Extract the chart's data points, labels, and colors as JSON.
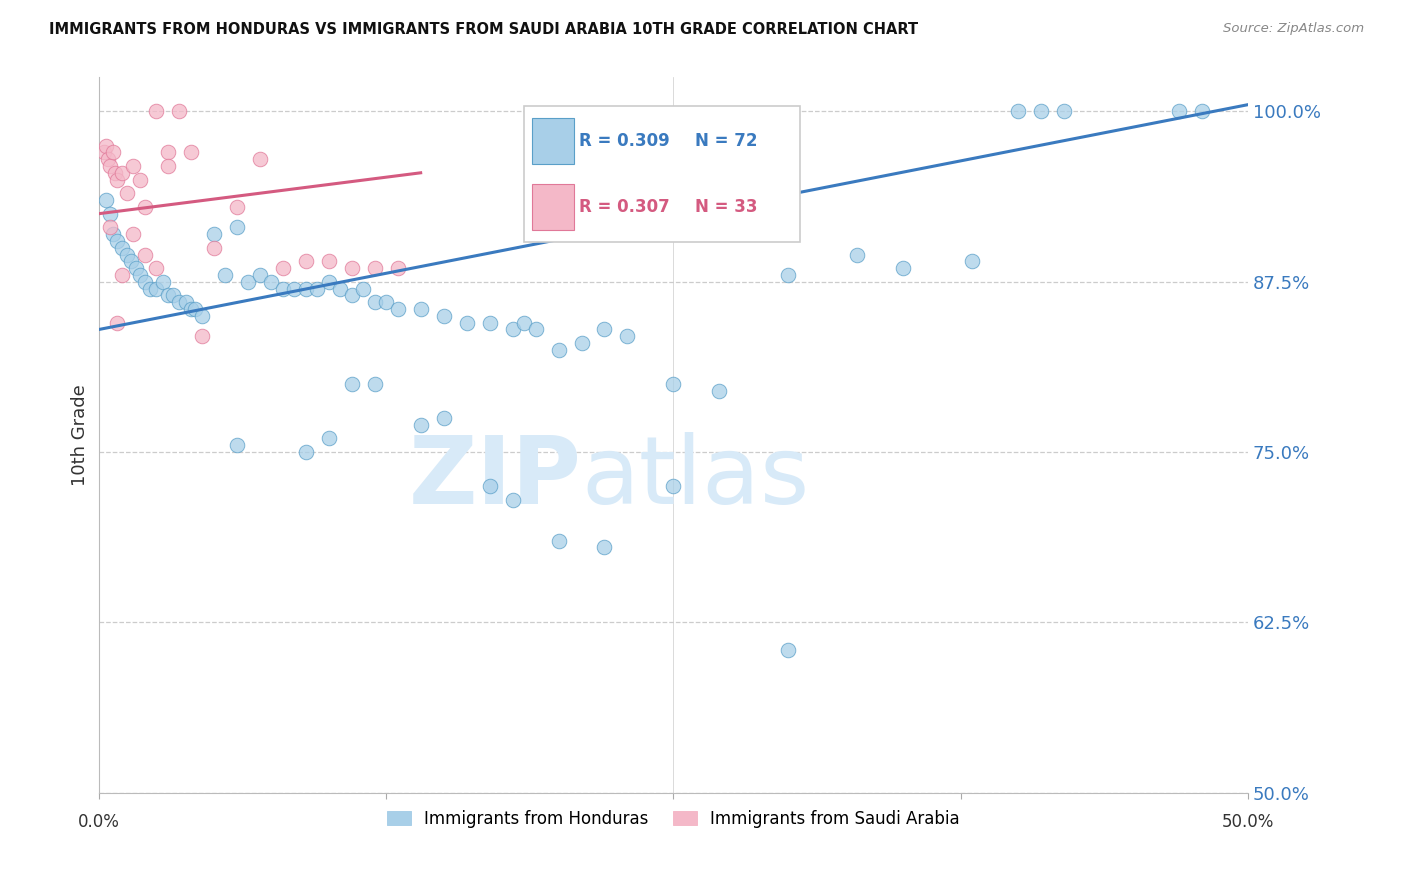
{
  "title": "IMMIGRANTS FROM HONDURAS VS IMMIGRANTS FROM SAUDI ARABIA 10TH GRADE CORRELATION CHART",
  "source": "Source: ZipAtlas.com",
  "ylabel": "10th Grade",
  "legend_blue_r": "R = 0.309",
  "legend_blue_n": "N = 72",
  "legend_pink_r": "R = 0.307",
  "legend_pink_n": "N = 33",
  "legend_label_blue": "Immigrants from Honduras",
  "legend_label_pink": "Immigrants from Saudi Arabia",
  "blue_color": "#a8cfe8",
  "blue_edge_color": "#5a9fc8",
  "pink_color": "#f4b8c8",
  "pink_edge_color": "#e07898",
  "blue_line_color": "#3a7abf",
  "pink_line_color": "#d45a80",
  "watermark_zip": "ZIP",
  "watermark_atlas": "atlas",
  "xmin": 0.0,
  "xmax": 50.0,
  "ymin": 50.0,
  "ymax": 102.5,
  "yticks": [
    50.0,
    62.5,
    75.0,
    87.5,
    100.0
  ],
  "ytick_labels": [
    "50.0%",
    "62.5%",
    "75.0%",
    "87.5%",
    "100.0%"
  ],
  "blue_trend_x": [
    0.0,
    50.0
  ],
  "blue_trend_y": [
    84.0,
    100.5
  ],
  "pink_trend_x": [
    0.0,
    14.0
  ],
  "pink_trend_y": [
    92.5,
    95.5
  ],
  "blue_x": [
    0.3,
    0.5,
    0.6,
    0.8,
    1.0,
    1.2,
    1.4,
    1.6,
    1.8,
    2.0,
    2.2,
    2.5,
    2.8,
    3.0,
    3.2,
    3.5,
    3.8,
    4.0,
    4.2,
    4.5,
    5.0,
    5.5,
    6.0,
    6.5,
    7.0,
    7.5,
    8.0,
    8.5,
    9.0,
    9.5,
    10.0,
    10.5,
    11.0,
    11.5,
    12.0,
    12.5,
    13.0,
    14.0,
    15.0,
    16.0,
    17.0,
    18.0,
    18.5,
    19.0,
    20.0,
    21.0,
    22.0,
    23.0,
    25.0,
    27.0,
    30.0,
    33.0,
    35.0,
    38.0,
    40.0,
    41.0,
    42.0,
    47.0,
    48.0,
    6.0,
    9.0,
    10.0,
    11.0,
    12.0,
    14.0,
    15.0,
    17.0,
    18.0,
    20.0,
    22.0,
    25.0,
    30.0
  ],
  "blue_y": [
    93.5,
    92.5,
    91.0,
    90.5,
    90.0,
    89.5,
    89.0,
    88.5,
    88.0,
    87.5,
    87.0,
    87.0,
    87.5,
    86.5,
    86.5,
    86.0,
    86.0,
    85.5,
    85.5,
    85.0,
    91.0,
    88.0,
    91.5,
    87.5,
    88.0,
    87.5,
    87.0,
    87.0,
    87.0,
    87.0,
    87.5,
    87.0,
    86.5,
    87.0,
    86.0,
    86.0,
    85.5,
    85.5,
    85.0,
    84.5,
    84.5,
    84.0,
    84.5,
    84.0,
    82.5,
    83.0,
    84.0,
    83.5,
    80.0,
    79.5,
    88.0,
    89.5,
    88.5,
    89.0,
    100.0,
    100.0,
    100.0,
    100.0,
    100.0,
    75.5,
    75.0,
    76.0,
    80.0,
    80.0,
    77.0,
    77.5,
    72.5,
    71.5,
    68.5,
    68.0,
    72.5,
    60.5
  ],
  "pink_x": [
    0.2,
    0.3,
    0.4,
    0.5,
    0.6,
    0.7,
    0.8,
    1.0,
    1.2,
    1.5,
    1.8,
    2.0,
    2.5,
    3.0,
    3.5,
    4.0,
    5.0,
    6.0,
    7.0,
    8.0,
    9.0,
    10.0,
    11.0,
    12.0,
    13.0,
    4.5,
    2.0,
    1.0,
    0.5,
    1.5,
    3.0,
    0.8,
    2.5
  ],
  "pink_y": [
    97.0,
    97.5,
    96.5,
    96.0,
    97.0,
    95.5,
    95.0,
    95.5,
    94.0,
    96.0,
    95.0,
    93.0,
    100.0,
    97.0,
    100.0,
    97.0,
    90.0,
    93.0,
    96.5,
    88.5,
    89.0,
    89.0,
    88.5,
    88.5,
    88.5,
    83.5,
    89.5,
    88.0,
    91.5,
    91.0,
    96.0,
    84.5,
    88.5
  ]
}
